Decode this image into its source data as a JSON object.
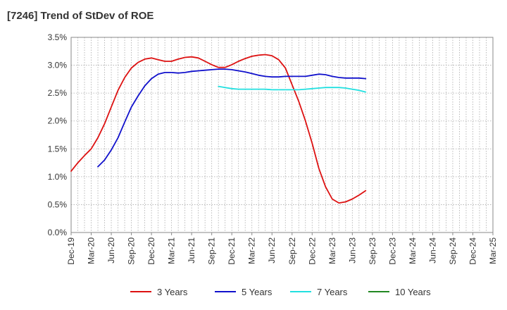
{
  "chart_data": {
    "type": "line",
    "title": "[7246]  Trend of StDev of ROE",
    "xlabel": "",
    "ylabel": "",
    "ylim": [
      0,
      3.5
    ],
    "y_ticks": [
      0,
      0.5,
      1.0,
      1.5,
      2.0,
      2.5,
      3.0,
      3.5
    ],
    "y_tick_labels": [
      "0.0%",
      "0.5%",
      "1.0%",
      "1.5%",
      "2.0%",
      "2.5%",
      "3.0%",
      "3.5%"
    ],
    "x_tick_labels": [
      "Dec-19",
      "Mar-20",
      "Jun-20",
      "Sep-20",
      "Dec-20",
      "Mar-21",
      "Jun-21",
      "Sep-21",
      "Dec-21",
      "Mar-22",
      "Jun-22",
      "Sep-22",
      "Dec-22",
      "Mar-23",
      "Jun-23",
      "Sep-23",
      "Dec-23",
      "Mar-24",
      "Jun-24",
      "Sep-24",
      "Dec-24",
      "Mar-25"
    ],
    "grid": true,
    "legend_position": "bottom",
    "series": [
      {
        "name": "3 Years",
        "color": "#dd1111",
        "values": [
          1.1,
          1.25,
          1.38,
          1.5,
          1.7,
          1.95,
          2.25,
          2.55,
          2.78,
          2.95,
          3.05,
          3.11,
          3.13,
          3.1,
          3.07,
          3.07,
          3.11,
          3.14,
          3.15,
          3.13,
          3.07,
          3.01,
          2.96,
          2.96,
          3.01,
          3.07,
          3.12,
          3.16,
          3.18,
          3.19,
          3.17,
          3.1,
          2.95,
          2.65,
          2.35,
          2.0,
          1.6,
          1.15,
          0.82,
          0.6,
          0.53,
          0.55,
          0.6,
          0.67,
          0.75
        ]
      },
      {
        "name": "5 Years",
        "color": "#1111cc",
        "values": [
          null,
          null,
          null,
          null,
          1.18,
          1.3,
          1.48,
          1.7,
          1.98,
          2.25,
          2.45,
          2.63,
          2.76,
          2.84,
          2.87,
          2.87,
          2.86,
          2.87,
          2.89,
          2.9,
          2.91,
          2.92,
          2.93,
          2.93,
          2.92,
          2.9,
          2.88,
          2.85,
          2.82,
          2.8,
          2.79,
          2.79,
          2.8,
          2.8,
          2.8,
          2.8,
          2.82,
          2.84,
          2.83,
          2.8,
          2.78,
          2.77,
          2.77,
          2.77,
          2.76
        ]
      },
      {
        "name": "7 Years",
        "color": "#22e0e0",
        "values": [
          null,
          null,
          null,
          null,
          null,
          null,
          null,
          null,
          null,
          null,
          null,
          null,
          null,
          null,
          null,
          null,
          null,
          null,
          null,
          null,
          null,
          null,
          2.62,
          2.6,
          2.58,
          2.57,
          2.57,
          2.57,
          2.57,
          2.57,
          2.56,
          2.56,
          2.56,
          2.56,
          2.56,
          2.57,
          2.58,
          2.59,
          2.6,
          2.6,
          2.6,
          2.59,
          2.57,
          2.55,
          2.52
        ]
      },
      {
        "name": "10 Years",
        "color": "#228822",
        "values": []
      }
    ]
  }
}
